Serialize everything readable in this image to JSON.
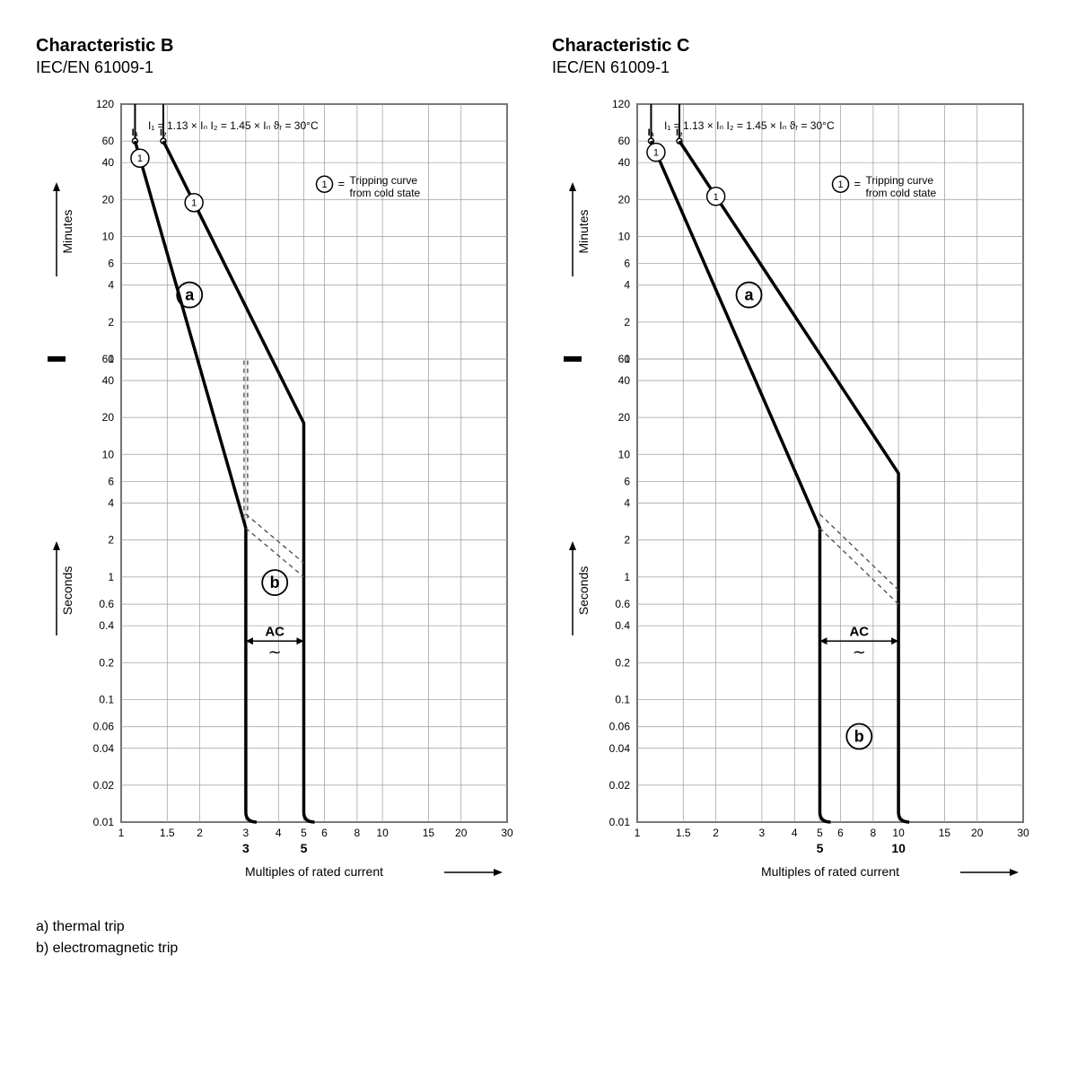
{
  "chart_common": {
    "subtitle": "IEC/EN 61009-1",
    "formula_line": "I₁ = 1.13 × Iₙ    I₂ = 1.45 × Iₙ    ϑᵣ = 30°C",
    "legend_circle_num": "1",
    "legend_text_line1": "Tripping curve",
    "legend_text_line2": "from cold state",
    "y_axis_minutes_label": "Minutes",
    "y_axis_seconds_label": "Seconds",
    "x_axis_label": "Multiples of rated current",
    "region_a": "a",
    "region_b": "b",
    "ac_label": "AC",
    "x_ticks": [
      1,
      1.5,
      2,
      3,
      4,
      5,
      6,
      8,
      10,
      15,
      20,
      30
    ],
    "y_ticks_minutes": [
      1,
      2,
      4,
      6,
      10,
      20,
      40,
      60,
      120
    ],
    "y_ticks_seconds": [
      0.01,
      0.02,
      0.04,
      0.06,
      0.1,
      0.2,
      0.4,
      0.6,
      1,
      2,
      4,
      6,
      10,
      20,
      40,
      60
    ],
    "plot_bg": "#ffffff",
    "grid_color": "#999999",
    "curve_color": "#000000",
    "curve_width": 3.5,
    "dash_color": "#555555",
    "text_color": "#000000",
    "tick_fontsize": 12,
    "label_fontsize": 14,
    "title_fontsize": 20
  },
  "chart_b": {
    "title": "Characteristic B",
    "trip_low": 3,
    "trip_high": 5,
    "trip_low_bold": "3",
    "trip_high_bold": "5"
  },
  "chart_c": {
    "title": "Characteristic C",
    "trip_low": 5,
    "trip_high": 10,
    "trip_low_bold": "5",
    "trip_high_bold": "10"
  },
  "footer": {
    "line_a": "a)  thermal trip",
    "line_b": "b)  electromagnetic trip"
  }
}
